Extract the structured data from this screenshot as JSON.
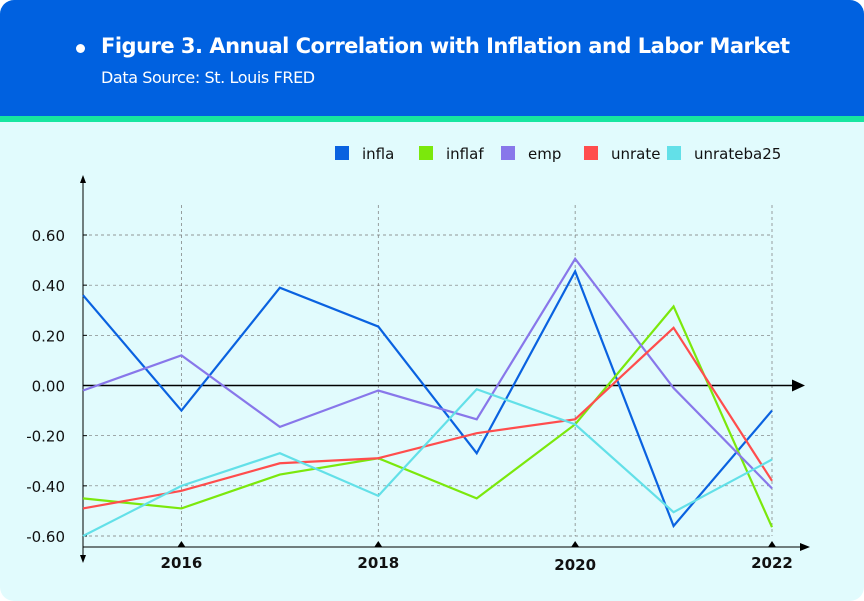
{
  "header": {
    "title": "Figure 3. Annual Correlation with Inflation and Labor Market",
    "subtitle": "Data Source: St. Louis FRED"
  },
  "chart_data": {
    "type": "line",
    "title": "Figure 3. Annual Correlation with Inflation and Labor Market",
    "xlabel": "",
    "ylabel": "",
    "x": [
      2015,
      2016,
      2017,
      2018,
      2019,
      2020,
      2021,
      2022
    ],
    "xticks": [
      2016,
      2018,
      2020,
      2022
    ],
    "xtick_labels": [
      "2016",
      "2018",
      "2020",
      "2022"
    ],
    "yticks": [
      0.6,
      0.4,
      0.2,
      0,
      -0.2,
      -0.4,
      -0.6
    ],
    "ytick_labels": [
      "0.60",
      "0.40",
      "0.20",
      "0.00",
      "-0.20",
      "-0.40",
      "-0.60"
    ],
    "xlim": [
      2015,
      2022
    ],
    "ylim": [
      -0.6,
      0.6
    ],
    "grid": true,
    "legend_placement": "top-right",
    "series": [
      {
        "name": "infla",
        "color": "#0a62e0",
        "values": [
          0.36,
          -0.1,
          0.39,
          0.235,
          -0.27,
          0.455,
          -0.56,
          -0.1
        ]
      },
      {
        "name": "inflaf",
        "color": "#7be80c",
        "values": [
          -0.45,
          -0.49,
          -0.355,
          -0.29,
          -0.45,
          -0.155,
          0.315,
          -0.565
        ]
      },
      {
        "name": "emp",
        "color": "#8877ea",
        "values": [
          -0.02,
          0.12,
          -0.165,
          -0.02,
          -0.135,
          0.505,
          -0.01,
          -0.41
        ]
      },
      {
        "name": "unrate",
        "color": "#ff4d4d",
        "values": [
          -0.49,
          -0.42,
          -0.31,
          -0.29,
          -0.19,
          -0.135,
          0.23,
          -0.38
        ]
      },
      {
        "name": "unrateba25",
        "color": "#63e0e8",
        "values": [
          -0.6,
          -0.4,
          -0.27,
          -0.44,
          -0.015,
          -0.155,
          -0.505,
          -0.295
        ]
      }
    ]
  }
}
